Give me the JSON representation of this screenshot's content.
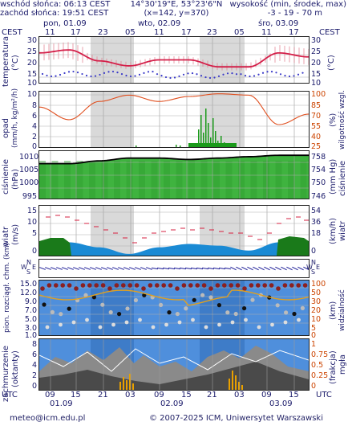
{
  "header": {
    "sunrise": "wschód słońca: 06:13 CEST",
    "sunset": "zachód słońca: 19:51 CEST",
    "coords": "14°30'19\"E, 53°23'6\"N",
    "grid": "(x=142, y=370)",
    "elev_label": "wysokość (min, środek, max)",
    "elev_values": "-3 - 19 - 70 m"
  },
  "top_axis": {
    "tz_left": "CEST",
    "tz_right": "CEST",
    "days": [
      "pon, 01.09",
      "wto, 02.09",
      "śro, 03.09"
    ],
    "hours": [
      "11",
      "17",
      "23",
      "05",
      "11",
      "17",
      "23",
      "05",
      "11",
      "17"
    ]
  },
  "bottom_axis": {
    "tz_left": "UTC",
    "tz_right": "UTC",
    "hours": [
      "09",
      "15",
      "21",
      "03",
      "09",
      "15",
      "21",
      "03",
      "09",
      "15"
    ],
    "dates": [
      "01.09",
      "02.09",
      "03.09"
    ]
  },
  "panels": {
    "temperature": {
      "label": "temperatura",
      "unit_left": "(°C)",
      "unit_right": "(°C)",
      "ticks": [
        "30",
        "25",
        "20",
        "15",
        "10"
      ]
    },
    "precip": {
      "label": "opad",
      "unit_left": "(mm/h, kg/m²/h)",
      "label_right": "wilgotność wzgl.",
      "unit_right": "(%)",
      "ticks_left": [
        "10",
        "8",
        "6",
        "4",
        "2",
        "0"
      ],
      "ticks_right": [
        "100",
        "85",
        "70",
        "55",
        "40",
        "25"
      ]
    },
    "pressure": {
      "label": "ciśnienie",
      "unit_left": "(hPa)",
      "label_right": "ciśnienie",
      "unit_right": "(mm Hg)",
      "ticks_left": [
        "1010",
        "1005",
        "1000",
        "995"
      ],
      "ticks_right": [
        "758",
        "754",
        "750",
        "746"
      ]
    },
    "wind": {
      "label": "wiatr",
      "unit_left": "(m/s)",
      "label_right": "wiatr",
      "unit_right": "(km/h)",
      "ticks_left": [
        "15",
        "10",
        "5",
        "0"
      ],
      "ticks_right": [
        "54",
        "36",
        "18",
        "0"
      ]
    },
    "direction": {
      "N": "N",
      "S": "S",
      "W": "W",
      "E": "E"
    },
    "visibility": {
      "label": "pion. rozciągł. chm. (km)",
      "label_right": "widzialność",
      "unit_right": "(km)",
      "ticks_left": [
        "15.0",
        "12.0",
        "9.0",
        "7.0",
        "5.0",
        "3.0",
        "1.0"
      ],
      "ticks_right": [
        "100",
        "50",
        "30",
        "20",
        "10",
        "5",
        "0"
      ]
    },
    "clouds": {
      "label": "zachmurzenie",
      "unit_left": "(oktanty)",
      "label_right": "mgła",
      "unit_right": "(frakcja)",
      "ticks_left": [
        "8",
        "6",
        "4",
        "2",
        "0"
      ],
      "ticks_right": [
        "1",
        "0.75",
        "0.5",
        "0.25",
        "0"
      ]
    }
  },
  "footer": {
    "email": "meteo@icm.edu.pl",
    "copyright": "© 2007-2025 ICM, Uniwersytet Warszawski"
  },
  "colors": {
    "night": "#d9d9d9",
    "temp": "#d4204a",
    "humidity": "#e05020",
    "rain": "#1a9a1a",
    "pressure_fill": "#3fb33f",
    "wind_fill": "#1a8ad4",
    "wind_dark": "#1a7a1a",
    "sky": "#4f8fdc"
  },
  "chart_data": [
    {
      "type": "line",
      "title": "temperatura",
      "ylabel": "(°C)",
      "ylim": [
        10,
        30
      ],
      "x": [
        "11",
        "17",
        "23",
        "05",
        "11",
        "17",
        "23",
        "05",
        "11",
        "17"
      ],
      "series": [
        {
          "values": [
            23,
            24.5,
            19,
            16.5,
            19.5,
            19.5,
            16,
            16,
            23,
            21
          ]
        }
      ]
    },
    {
      "type": "line",
      "title": "opad",
      "ylabel": "(mm/h, kg/m²/h)",
      "ylim": [
        0,
        10
      ],
      "x": [
        "11",
        "17",
        "23",
        "05",
        "11",
        "17",
        "23",
        "05",
        "11",
        "17"
      ],
      "series": [
        {
          "values": [
            80,
            62,
            88,
            97,
            88,
            95,
            99,
            97,
            55,
            70
          ]
        }
      ]
    },
    {
      "type": "area",
      "title": "ciśnienie",
      "ylabel": "(hPa)",
      "ylim": [
        995,
        1012
      ],
      "x": [
        "11",
        "17",
        "23",
        "05",
        "11",
        "17",
        "23",
        "05",
        "11",
        "17"
      ],
      "series": [
        {
          "values": [
            1007.5,
            1007.5,
            1008.5,
            1009.5,
            1009.5,
            1009,
            1009.5,
            1010,
            1010.5,
            1010.5
          ]
        }
      ]
    },
    {
      "type": "area",
      "title": "wiatr",
      "ylabel": "(m/s)",
      "ylim": [
        0,
        15
      ],
      "x": [
        "11",
        "17",
        "23",
        "05",
        "11",
        "17",
        "23",
        "05",
        "11",
        "17"
      ],
      "series": [
        {
          "values": [
            4,
            4,
            2.5,
            0.5,
            2.5,
            3.5,
            3,
            1.5,
            4,
            3.5
          ]
        }
      ]
    }
  ]
}
